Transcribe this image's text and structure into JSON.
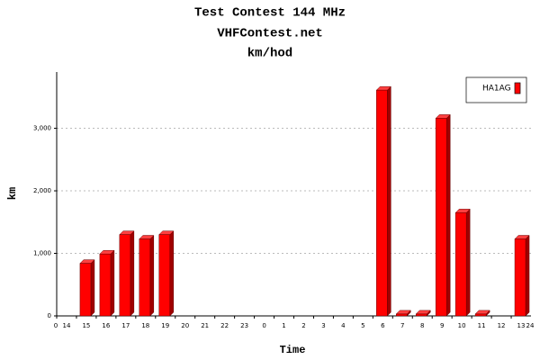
{
  "chart_data": {
    "type": "bar",
    "title": "Test Contest 144 MHz",
    "subtitle": "VHFContest.net",
    "subtitle2": "km/hod",
    "y_label": "km",
    "x_label": "Time",
    "x_end_labels": [
      "0",
      "24"
    ],
    "categories": [
      "14",
      "15",
      "16",
      "17",
      "18",
      "19",
      "20",
      "21",
      "22",
      "23",
      "0",
      "1",
      "2",
      "3",
      "4",
      "5",
      "6",
      "7",
      "8",
      "9",
      "10",
      "11",
      "12",
      "13"
    ],
    "series": [
      {
        "name": "HA1AG",
        "color": "#ff0000",
        "values": [
          0,
          840,
          990,
          1300,
          1230,
          1300,
          0,
          0,
          0,
          0,
          0,
          0,
          0,
          0,
          0,
          0,
          3610,
          30,
          30,
          3160,
          1650,
          30,
          0,
          1230
        ]
      }
    ],
    "ylim": [
      0,
      3900
    ],
    "yticks": [
      0,
      {
        "value": 1000,
        "label": "1,000"
      },
      {
        "value": 2000,
        "label": "2,000"
      },
      {
        "value": 3000,
        "label": "3,000"
      }
    ],
    "grid": true,
    "legend": "top-right"
  }
}
